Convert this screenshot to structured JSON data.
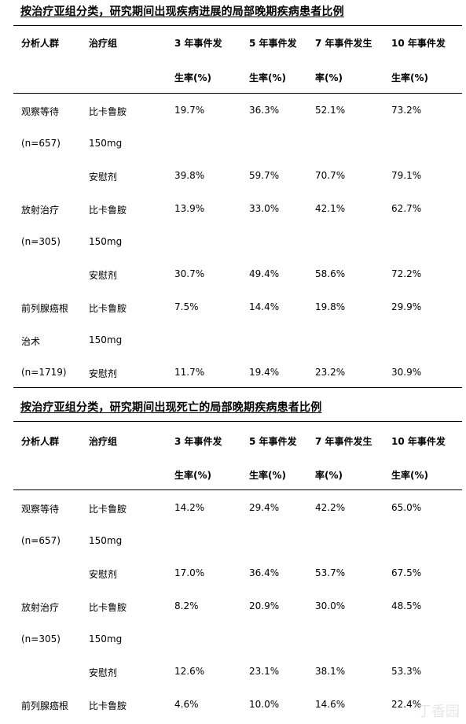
{
  "table1": {
    "title": "按治疗亚组分类，研究期间出现疾病进展的局部晚期疾病患者比例",
    "headers": {
      "col1": "分析人群",
      "col2": "治疗组",
      "col3_l1": "3 年事件发",
      "col3_l2": "生率(%)",
      "col4_l1": "5 年事件发",
      "col4_l2": "生率(%)",
      "col5_l1": "7 年事件发生",
      "col5_l2": "率(%)",
      "col6_l1": "10 年事件发",
      "col6_l2": "生率(%)"
    },
    "rows": [
      {
        "pop": "观察等待",
        "grp": "比卡鲁胺",
        "v3": "19.7%",
        "v5": "36.3%",
        "v7": "52.1%",
        "v10": "73.2%"
      },
      {
        "pop": "(n=657)",
        "grp": "150mg",
        "v3": "",
        "v5": "",
        "v7": "",
        "v10": ""
      },
      {
        "pop": "",
        "grp": "安慰剂",
        "v3": "39.8%",
        "v5": "59.7%",
        "v7": "70.7%",
        "v10": "79.1%"
      },
      {
        "pop": "放射治疗",
        "grp": "比卡鲁胺",
        "v3": "13.9%",
        "v5": "33.0%",
        "v7": "42.1%",
        "v10": "62.7%"
      },
      {
        "pop": "(n=305)",
        "grp": "150mg",
        "v3": "",
        "v5": "",
        "v7": "",
        "v10": ""
      },
      {
        "pop": "",
        "grp": "安慰剂",
        "v3": "30.7%",
        "v5": "49.4%",
        "v7": "58.6%",
        "v10": "72.2%"
      },
      {
        "pop": "前列腺癌根",
        "grp": "比卡鲁胺",
        "v3": "7.5%",
        "v5": "14.4%",
        "v7": "19.8%",
        "v10": "29.9%"
      },
      {
        "pop": "治术",
        "grp": "150mg",
        "v3": "",
        "v5": "",
        "v7": "",
        "v10": ""
      },
      {
        "pop": "(n=1719)",
        "grp": "安慰剂",
        "v3": "11.7%",
        "v5": "19.4%",
        "v7": "23.2%",
        "v10": "30.9%"
      }
    ]
  },
  "table2": {
    "title": "按治疗亚组分类，研究期间出现死亡的局部晚期疾病患者比例",
    "headers": {
      "col1": "分析人群",
      "col2": "治疗组",
      "col3_l1": "3 年事件发",
      "col3_l2": "生率(%)",
      "col4_l1": "5 年事件发",
      "col4_l2": "生率(%)",
      "col5_l1": "7 年事件发生",
      "col5_l2": "率(%)",
      "col6_l1": "10 年事件发",
      "col6_l2": "生率(%)"
    },
    "rows": [
      {
        "pop": "观察等待",
        "grp": "比卡鲁胺",
        "v3": "14.2%",
        "v5": "29.4%",
        "v7": "42.2%",
        "v10": "65.0%"
      },
      {
        "pop": "(n=657)",
        "grp": "150mg",
        "v3": "",
        "v5": "",
        "v7": "",
        "v10": ""
      },
      {
        "pop": "",
        "grp": "安慰剂",
        "v3": "17.0%",
        "v5": "36.4%",
        "v7": "53.7%",
        "v10": "67.5%"
      },
      {
        "pop": "放射治疗",
        "grp": "比卡鲁胺",
        "v3": "8.2%",
        "v5": "20.9%",
        "v7": "30.0%",
        "v10": "48.5%"
      },
      {
        "pop": "(n=305)",
        "grp": "150mg",
        "v3": "",
        "v5": "",
        "v7": "",
        "v10": ""
      },
      {
        "pop": "",
        "grp": "安慰剂",
        "v3": "12.6%",
        "v5": "23.1%",
        "v7": "38.1%",
        "v10": "53.3%"
      },
      {
        "pop": "前列腺癌根",
        "grp": "比卡鲁胺",
        "v3": "4.6%",
        "v5": "10.0%",
        "v7": "14.6%",
        "v10": "22.4%"
      }
    ]
  },
  "watermark": "丁香园"
}
